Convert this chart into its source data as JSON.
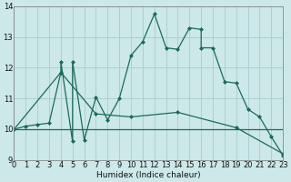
{
  "xlabel": "Humidex (Indice chaleur)",
  "bg_color": "#cce8e8",
  "grid_color": "#aacccc",
  "line_color": "#1a6b5a",
  "xlim": [
    0,
    23
  ],
  "ylim": [
    9,
    14
  ],
  "yticks": [
    9,
    10,
    11,
    12,
    13,
    14
  ],
  "xticks": [
    0,
    1,
    2,
    3,
    4,
    5,
    6,
    7,
    8,
    9,
    10,
    11,
    12,
    13,
    14,
    15,
    16,
    17,
    18,
    19,
    20,
    21,
    22,
    23
  ],
  "series": [
    {
      "x": [
        0,
        1,
        2,
        3,
        4,
        4,
        5,
        5,
        6,
        7,
        8,
        9,
        10,
        11,
        12,
        13,
        14,
        15,
        16,
        16,
        17,
        18,
        19,
        20,
        21,
        22,
        23
      ],
      "y": [
        10,
        10.1,
        10.15,
        10.2,
        11.85,
        12.2,
        9.6,
        12.2,
        9.65,
        11.05,
        10.3,
        11.0,
        12.4,
        12.85,
        13.75,
        12.65,
        12.6,
        13.3,
        13.25,
        12.65,
        12.65,
        11.55,
        11.5,
        10.65,
        10.4,
        9.75,
        9.15
      ],
      "marker": true
    },
    {
      "x": [
        0,
        4,
        7,
        10,
        14,
        19,
        23
      ],
      "y": [
        10.0,
        11.85,
        10.5,
        10.4,
        10.55,
        10.05,
        9.2
      ],
      "marker": true
    },
    {
      "x": [
        0,
        3,
        19,
        23
      ],
      "y": [
        10,
        10,
        10,
        10
      ],
      "marker": false
    }
  ]
}
